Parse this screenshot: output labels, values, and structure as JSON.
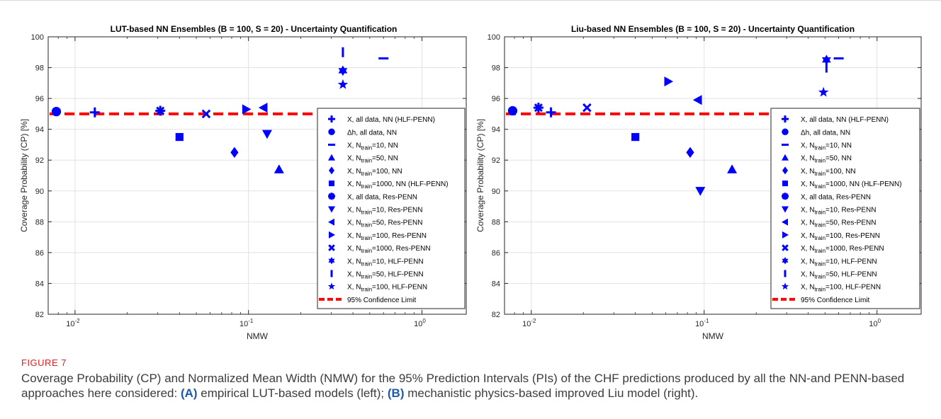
{
  "chart_data": [
    {
      "type": "scatter",
      "title": "LUT-based NN Ensembles (B = 100, S = 20) - Uncertainty Quantification",
      "xlabel": "NMW",
      "ylabel": "Coverage Probability (CP) [%]",
      "xscale": "log",
      "xlim": [
        0.007,
        1.8
      ],
      "ylim": [
        82,
        100
      ],
      "yticks": [
        82,
        84,
        86,
        88,
        90,
        92,
        94,
        96,
        98,
        100
      ],
      "xticks": [
        {
          "v": 0.01,
          "label": "10",
          "exp": "-2"
        },
        {
          "v": 0.1,
          "label": "10",
          "exp": "-1"
        },
        {
          "v": 1,
          "label": "10",
          "exp": "0"
        }
      ],
      "grid": true,
      "legend_position": "right",
      "reference_line": {
        "y": 95,
        "label": "95% Confidence Limit",
        "color": "#ff0000"
      },
      "series": [
        {
          "marker": "plus",
          "x": 0.013,
          "y": 95.1
        },
        {
          "marker": "circle",
          "x": 0.0078,
          "y": 95.15
        },
        {
          "marker": "hline",
          "x": 0.6,
          "y": 98.6
        },
        {
          "marker": "triangle-up",
          "x": 0.15,
          "y": 91.4
        },
        {
          "marker": "diamond",
          "x": 0.083,
          "y": 92.5
        },
        {
          "marker": "square",
          "x": 0.04,
          "y": 93.5
        },
        {
          "marker": "asterisk",
          "x": 0.031,
          "y": 95.2
        },
        {
          "marker": "triangle-down",
          "x": 0.128,
          "y": 93.7
        },
        {
          "marker": "triangle-left",
          "x": 0.122,
          "y": 95.4
        },
        {
          "marker": "triangle-right",
          "x": 0.097,
          "y": 95.3
        },
        {
          "marker": "x",
          "x": 0.057,
          "y": 95.0
        },
        {
          "marker": "hexagram",
          "x": 0.35,
          "y": 97.8
        },
        {
          "marker": "vline",
          "x": 0.35,
          "y": 99.0
        },
        {
          "marker": "pentagram",
          "x": 0.35,
          "y": 96.9
        }
      ]
    },
    {
      "type": "scatter",
      "title": "Liu-based NN Ensembles (B = 100, S = 20) - Uncertainty Quantification",
      "xlabel": "NMW",
      "ylabel": "Coverage Probability (CP) [%]",
      "xscale": "log",
      "xlim": [
        0.007,
        1.8
      ],
      "ylim": [
        82,
        100
      ],
      "yticks": [
        82,
        84,
        86,
        88,
        90,
        92,
        94,
        96,
        98,
        100
      ],
      "xticks": [
        {
          "v": 0.01,
          "label": "10",
          "exp": "-2"
        },
        {
          "v": 0.1,
          "label": "10",
          "exp": "-1"
        },
        {
          "v": 1,
          "label": "10",
          "exp": "0"
        }
      ],
      "grid": true,
      "legend_position": "right",
      "reference_line": {
        "y": 95,
        "label": "95% Confidence Limit",
        "color": "#ff0000"
      },
      "series": [
        {
          "marker": "plus",
          "x": 0.013,
          "y": 95.1
        },
        {
          "marker": "circle",
          "x": 0.0078,
          "y": 95.2
        },
        {
          "marker": "hline",
          "x": 0.6,
          "y": 98.6
        },
        {
          "marker": "triangle-up",
          "x": 0.145,
          "y": 91.4
        },
        {
          "marker": "diamond",
          "x": 0.083,
          "y": 92.5
        },
        {
          "marker": "square",
          "x": 0.04,
          "y": 93.5
        },
        {
          "marker": "asterisk",
          "x": 0.011,
          "y": 95.4
        },
        {
          "marker": "triangle-down",
          "x": 0.095,
          "y": 90.0
        },
        {
          "marker": "triangle-left",
          "x": 0.092,
          "y": 95.9
        },
        {
          "marker": "triangle-right",
          "x": 0.062,
          "y": 97.1
        },
        {
          "marker": "x",
          "x": 0.021,
          "y": 95.4
        },
        {
          "marker": "hexagram",
          "x": 0.51,
          "y": 98.5
        },
        {
          "marker": "vline",
          "x": 0.51,
          "y": 98.0
        },
        {
          "marker": "pentagram",
          "x": 0.49,
          "y": 96.4
        }
      ]
    }
  ],
  "legends": [
    {
      "items": [
        {
          "marker": "plus",
          "pre": "X, all data, NN (HLF-PENN)",
          "sub": "",
          "post": ""
        },
        {
          "marker": "circle",
          "pre": "Δh, all data, NN",
          "sub": "",
          "post": ""
        },
        {
          "marker": "hline",
          "pre": "X, N",
          "sub": "train",
          "post": "=10, NN"
        },
        {
          "marker": "triangle-up",
          "pre": "X, N",
          "sub": "train",
          "post": "=50, NN"
        },
        {
          "marker": "diamond",
          "pre": "X, N",
          "sub": "train",
          "post": "=100, NN"
        },
        {
          "marker": "square",
          "pre": "X, N",
          "sub": "train",
          "post": "=1000, NN (HLF-PENN)"
        },
        {
          "marker": "asterisk",
          "pre": "X, all data, Res-PENN",
          "sub": "",
          "post": ""
        },
        {
          "marker": "triangle-down",
          "pre": "X, N",
          "sub": "train",
          "post": "=10, Res-PENN"
        },
        {
          "marker": "triangle-left",
          "pre": "X, N",
          "sub": "train",
          "post": "=50, Res-PENN"
        },
        {
          "marker": "triangle-right",
          "pre": "X, N",
          "sub": "train",
          "post": "=100, Res-PENN"
        },
        {
          "marker": "x",
          "pre": "X, N",
          "sub": "train",
          "post": "=1000, Res-PENN"
        },
        {
          "marker": "hexagram",
          "pre": "X, N",
          "sub": "train",
          "post": "=10, HLF-PENN"
        },
        {
          "marker": "vline",
          "pre": "X, N",
          "sub": "train",
          "post": "=50, HLF-PENN"
        },
        {
          "marker": "pentagram",
          "pre": "X, N",
          "sub": "train",
          "post": "=100, HLF-PENN"
        },
        {
          "marker": "dashline",
          "pre": "95% Confidence Limit",
          "sub": "",
          "post": ""
        }
      ]
    },
    {
      "items": [
        {
          "marker": "plus",
          "pre": "X, all data, NN (HLF-PENN)",
          "sub": "",
          "post": ""
        },
        {
          "marker": "circle",
          "pre": "Δh, all data, NN",
          "sub": "",
          "post": ""
        },
        {
          "marker": "hline",
          "pre": "X, N",
          "sub": "train",
          "post": "=10, NN"
        },
        {
          "marker": "triangle-up",
          "pre": "X, N",
          "sub": "train",
          "post": "=50, NN"
        },
        {
          "marker": "diamond",
          "pre": "X, N",
          "sub": "train",
          "post": "=100, NN"
        },
        {
          "marker": "square",
          "pre": "X, N",
          "sub": "train",
          "post": "=1000, NN (HLF-PENN)"
        },
        {
          "marker": "asterisk",
          "pre": "X, all data, Res-PENN",
          "sub": "",
          "post": ""
        },
        {
          "marker": "triangle-down",
          "pre": "X, N",
          "sub": "train",
          "post": "=10, Res-PENN"
        },
        {
          "marker": "triangle-left",
          "pre": "X, N",
          "sub": "train",
          "post": "=50, Res-PENN"
        },
        {
          "marker": "triangle-right",
          "pre": "X, N",
          "sub": "train",
          "post": "=100, Res-PENN"
        },
        {
          "marker": "x",
          "pre": "X, N",
          "sub": "train",
          "post": "=1000, Res-PENN"
        },
        {
          "marker": "hexagram",
          "pre": "X, N",
          "sub": "train",
          "post": "=10, HLF-PENN"
        },
        {
          "marker": "vline",
          "pre": "X, N",
          "sub": "train",
          "post": "=50, HLF-PENN"
        },
        {
          "marker": "pentagram",
          "pre": "X, N",
          "sub": "train",
          "post": "=100, HLF-PENN"
        },
        {
          "marker": "dashline",
          "pre": "95% Confidence Limit",
          "sub": "",
          "post": ""
        }
      ]
    }
  ],
  "colors": {
    "marker": "#0000ff",
    "reference": "#ff0000",
    "grid": "#e2e2e2",
    "axis": "#262626"
  },
  "caption": {
    "label": "FIGURE 7",
    "text_1": "Coverage Probability (CP) and Normalized Mean Width (NMW) for the 95% Prediction Intervals (PIs) of the CHF predictions produced by all the NN-and PENN-based approaches here considered: ",
    "bold_a": "(A)",
    "text_2": " empirical LUT-based models (left); ",
    "bold_b": "(B)",
    "text_3": " mechanistic physics-based improved Liu model (right)."
  }
}
